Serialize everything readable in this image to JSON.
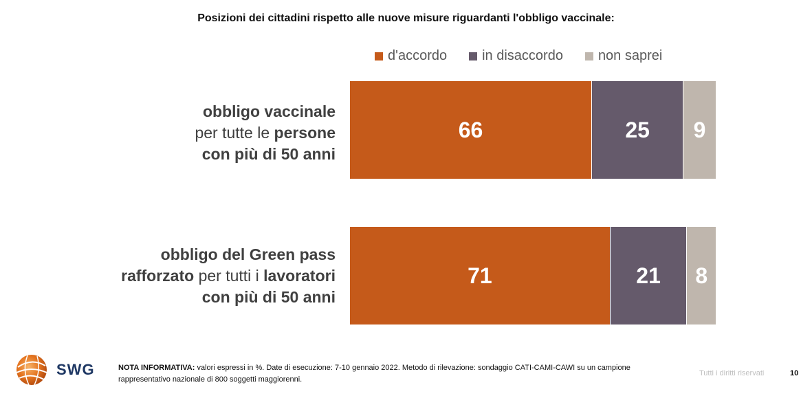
{
  "title": "Posizioni dei cittadini rispetto alle nuove misure riguardanti l'obbligo vaccinale:",
  "colors": {
    "accordo": "#c55a1a",
    "disaccordo": "#655a6b",
    "non_saprei": "#bfb6ad"
  },
  "legend": [
    {
      "label": "d'accordo",
      "color": "#c55a1a"
    },
    {
      "label": "in disaccordo",
      "color": "#655a6b"
    },
    {
      "label": "non saprei",
      "color": "#bfb6ad"
    }
  ],
  "rows": [
    {
      "line1": [
        {
          "text": "obbligo vaccinale",
          "bold": true
        }
      ],
      "line2": [
        {
          "text": "per tutte le ",
          "bold": false
        },
        {
          "text": "persone",
          "bold": true
        }
      ],
      "line3": [
        {
          "text": "con più di 50 anni",
          "bold": true
        }
      ]
    },
    {
      "line1": [
        {
          "text": "obbligo del Green pass",
          "bold": true
        }
      ],
      "line2": [
        {
          "text": "rafforzato",
          "bold": true
        },
        {
          "text": " per tutti i ",
          "bold": false
        },
        {
          "text": "lavoratori",
          "bold": true
        }
      ],
      "line3": [
        {
          "text": "con più di 50 anni",
          "bold": true
        }
      ]
    }
  ],
  "chart_data": {
    "type": "bar",
    "orientation": "horizontal-stacked",
    "categories": [
      "obbligo vaccinale per tutte le persone con più di 50 anni",
      "obbligo del Green pass rafforzato per tutti i lavoratori con più di 50 anni"
    ],
    "series": [
      {
        "name": "d'accordo",
        "values": [
          66,
          71
        ]
      },
      {
        "name": "in disaccordo",
        "values": [
          25,
          21
        ]
      },
      {
        "name": "non saprei",
        "values": [
          9,
          8
        ]
      }
    ],
    "title": "Posizioni dei cittadini rispetto alle nuove misure riguardanti l'obbligo vaccinale:",
    "xlim": [
      0,
      100
    ],
    "legend_position": "top",
    "grid": false
  },
  "footer": {
    "logo_text": "SWG",
    "note_label": "NOTA INFORMATIVA:",
    "note_text": " valori espressi in %. Date di esecuzione: 7-10 gennaio 2022. Metodo di rilevazione: sondaggio CATI-CAMI-CAWI su un campione rappresentativo nazionale di 800 soggetti maggiorenni.",
    "rights": "Tutti i diritti riservati",
    "page_number": "10"
  }
}
